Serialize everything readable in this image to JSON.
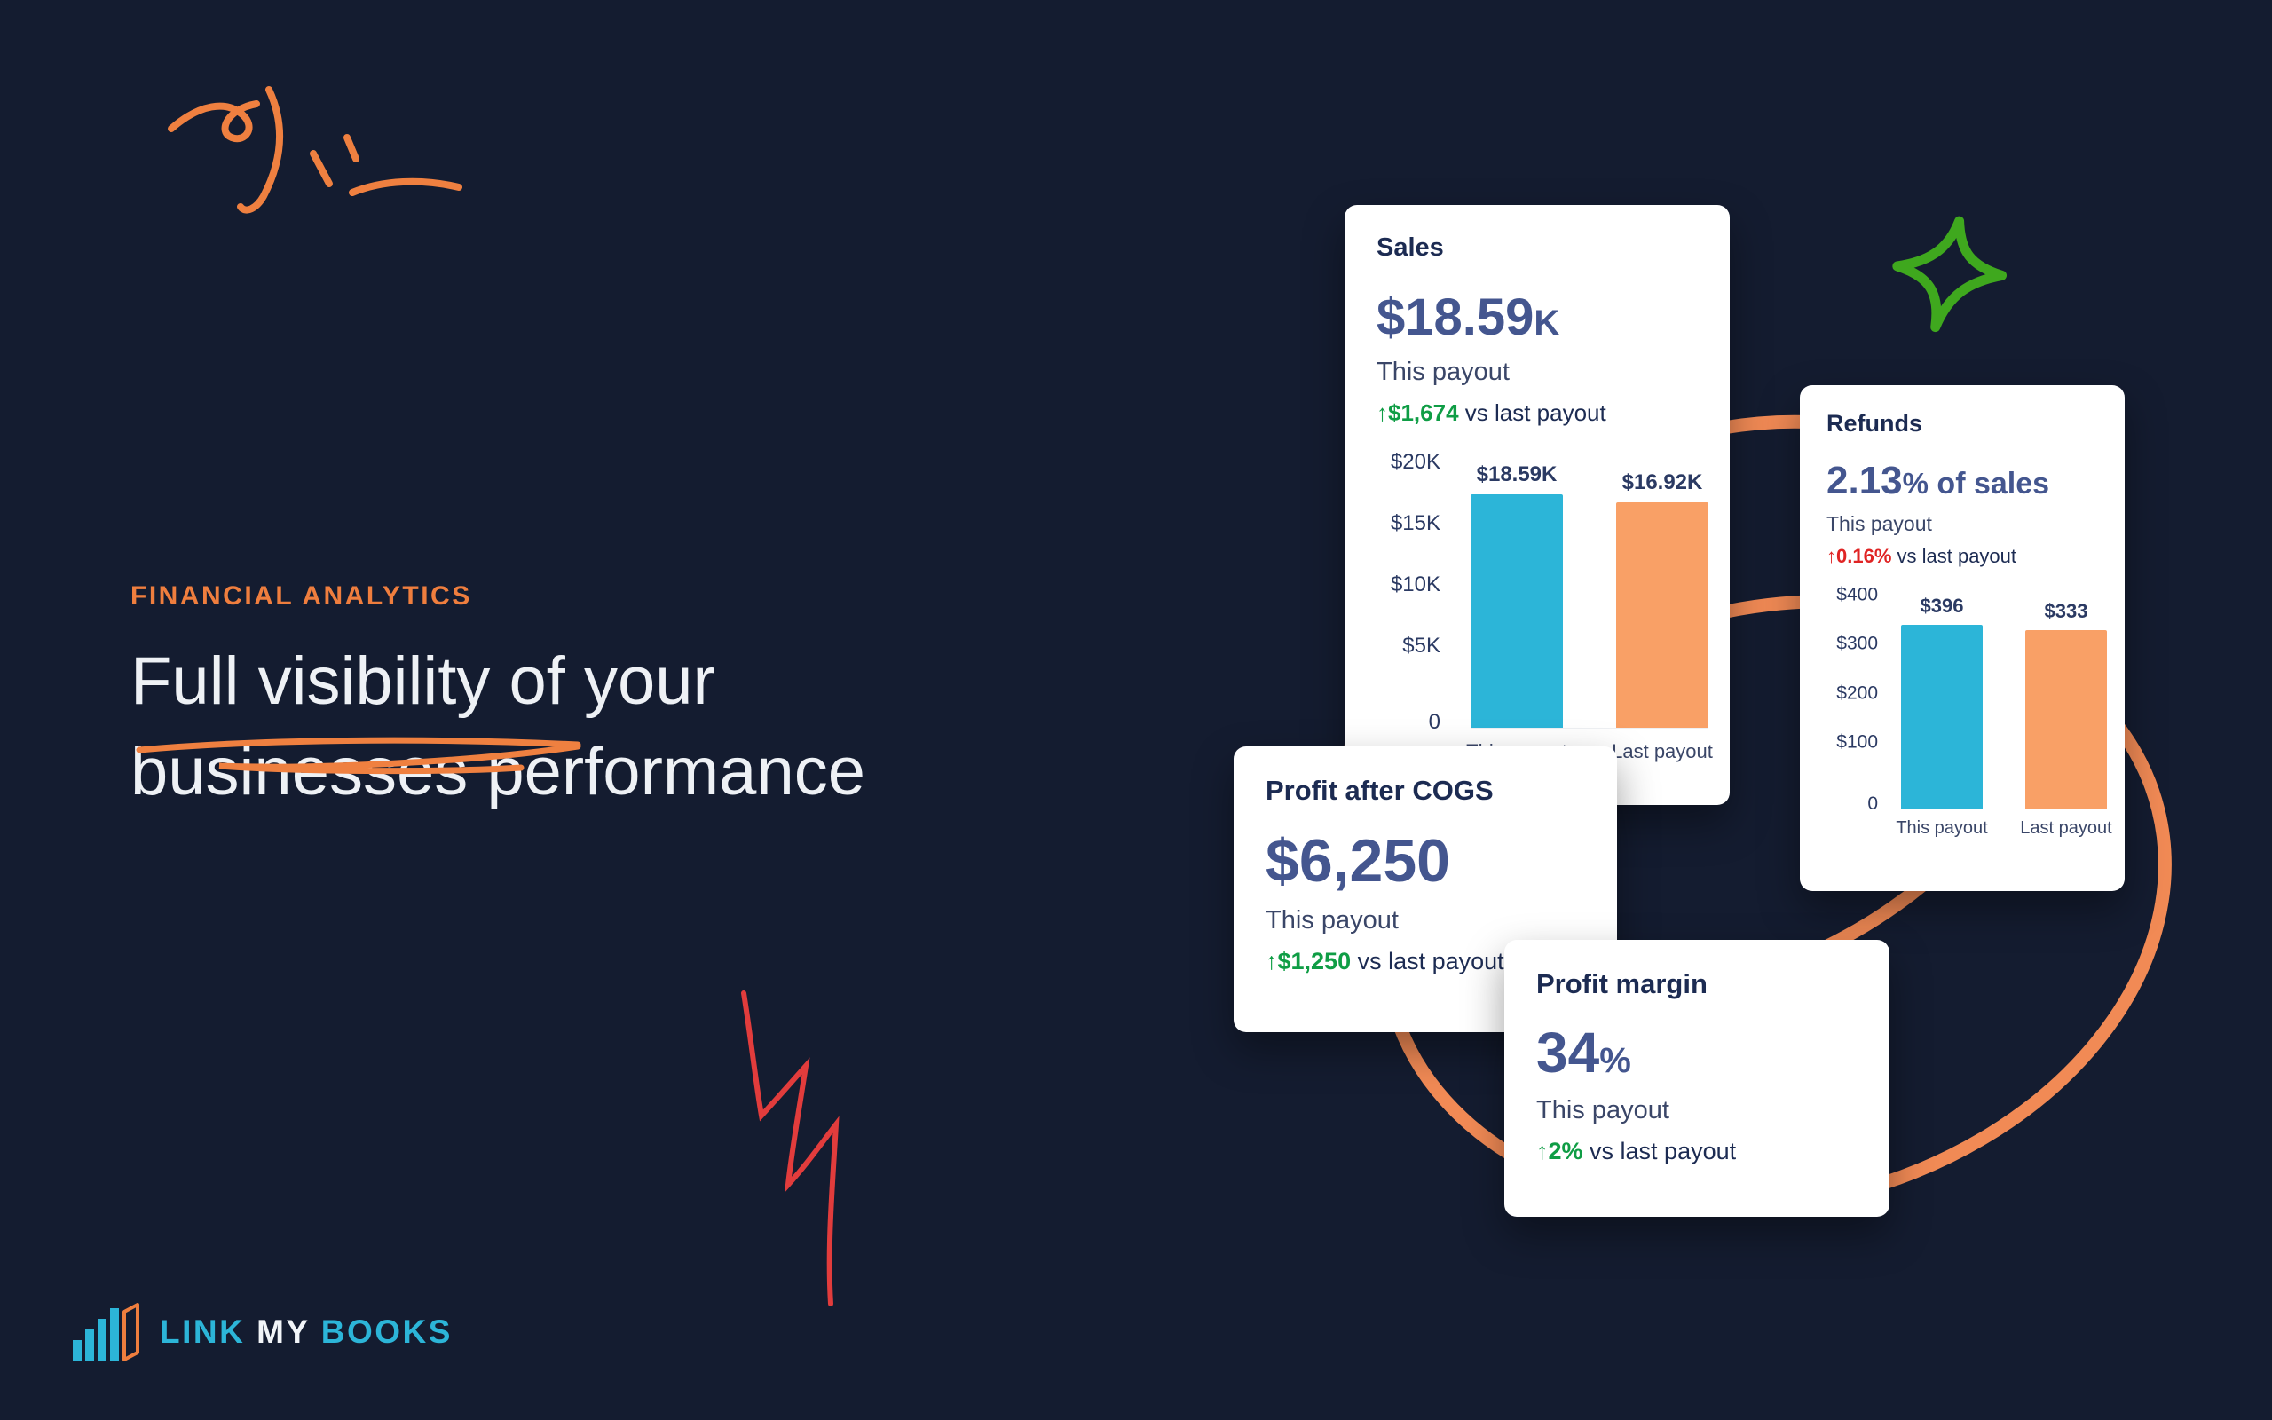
{
  "theme": {
    "bg": "#141c30",
    "card_bg": "#ffffff",
    "navy_dark": "#1c2b52",
    "navy_num": "#44568f",
    "teal": "#2cb5d8",
    "orange_bar": "#f9a066",
    "accent_orange": "#ef7e3e",
    "green": "#0f9d45",
    "red": "#e02424",
    "logo_cyan": "#2cb5d8"
  },
  "hero": {
    "eyebrow": "FINANCIAL ANALYTICS",
    "line1": "Full visibility of your",
    "line2": "businesses performance"
  },
  "logo": {
    "word1": "LINK",
    "word2": "MY",
    "word3": "BOOKS"
  },
  "cards": {
    "sales": {
      "title": "Sales",
      "value_main": "$18.59",
      "value_suffix": "K",
      "period": "This payout",
      "delta_value": "↑$1,674",
      "delta_rest": " vs last payout"
    },
    "refunds": {
      "title": "Refunds",
      "value_main": "2.13",
      "value_pct": "%",
      "value_rest": " of sales",
      "period": "This payout",
      "delta_value": "↑0.16%",
      "delta_rest": " vs last payout"
    },
    "profit_cogs": {
      "title": "Profit after COGS",
      "value_main": "$6,250",
      "period": "This payout",
      "delta_value": "↑$1,250",
      "delta_rest": " vs last payout"
    },
    "profit_margin": {
      "title": "Profit margin",
      "value_main": "34",
      "value_pct": "%",
      "period": "This payout",
      "delta_value": "↑2%",
      "delta_rest": " vs last payout"
    }
  },
  "chart_data": [
    {
      "id": "sales",
      "type": "bar",
      "title": "Sales",
      "categories": [
        "This payout",
        "Last payout"
      ],
      "values": [
        18590,
        16920
      ],
      "bar_labels": [
        "$18.59K",
        "$16.92K"
      ],
      "bar_colors": [
        "#2cb5d8",
        "#f9a066"
      ],
      "y_ticks": [
        "$20K",
        "$15K",
        "$10K",
        "$5K",
        "0"
      ],
      "ylim": [
        0,
        20000
      ],
      "xlabel": "",
      "ylabel": "",
      "grid": false,
      "legend": false
    },
    {
      "id": "refunds",
      "type": "bar",
      "title": "Refunds",
      "categories": [
        "This payout",
        "Last payout"
      ],
      "values": [
        396,
        333
      ],
      "bar_labels": [
        "$396",
        "$333"
      ],
      "bar_colors": [
        "#2cb5d8",
        "#f9a066"
      ],
      "y_ticks": [
        "$400",
        "$300",
        "$200",
        "$100",
        "0"
      ],
      "ylim": [
        0,
        400
      ],
      "xlabel": "",
      "ylabel": "",
      "grid": false,
      "legend": false
    }
  ]
}
